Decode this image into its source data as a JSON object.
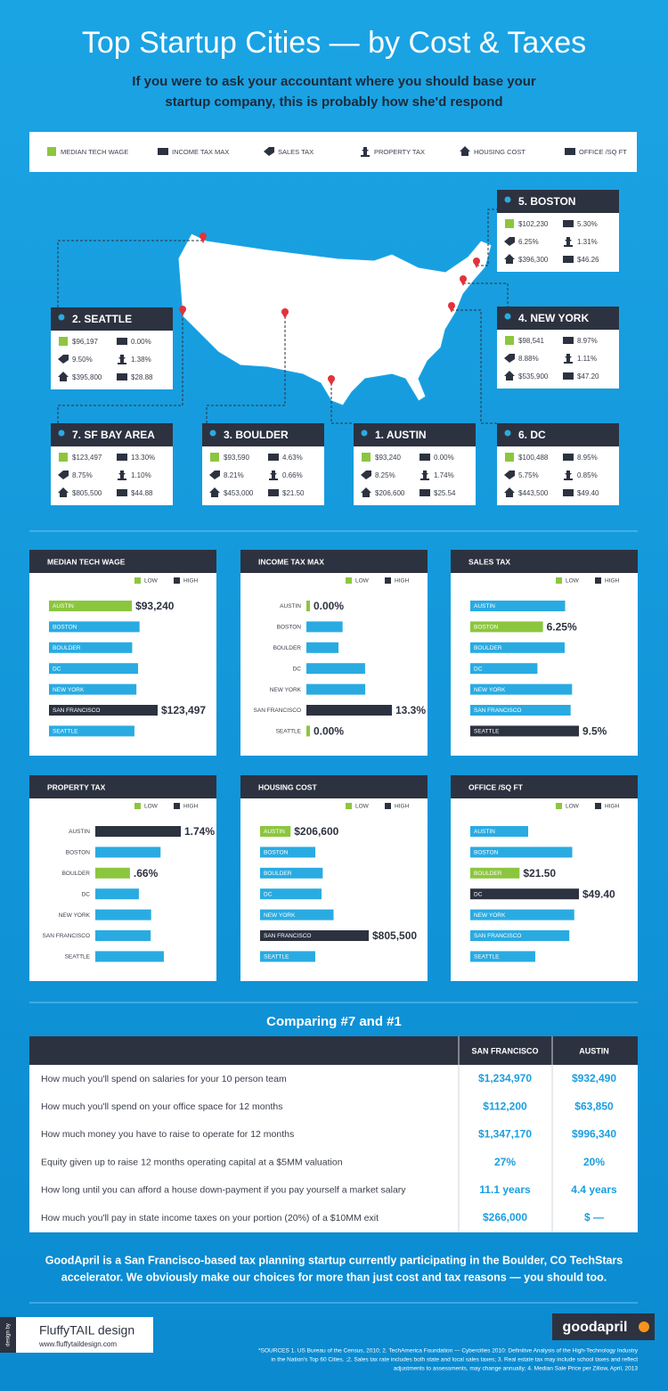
{
  "header": {
    "title": "Top Startup Cities — by Cost & Taxes",
    "subtitle_lines": [
      "If you were to ask your accountant where you should base your",
      "startup company, this is probably how she'd respond"
    ]
  },
  "legend": [
    "MEDIAN TECH WAGE",
    "INCOME TAX MAX",
    "SALES TAX",
    "PROPERTY TAX",
    "HOUSING COST",
    "OFFICE /SQ FT"
  ],
  "cities": [
    {
      "name": "5. BOSTON",
      "wage": "$102,230",
      "income_tax": "5.30%",
      "sales_tax": "6.25%",
      "property_tax": "1.31%",
      "housing": "$396,300",
      "office": "$46.26"
    },
    {
      "name": "2. SEATTLE",
      "wage": "$96,197",
      "income_tax": "0.00%",
      "sales_tax": "9.50%",
      "property_tax": "1.38%",
      "housing": "$395,800",
      "office": "$28.88"
    },
    {
      "name": "4. NEW YORK",
      "wage": "$98,541",
      "income_tax": "8.97%",
      "sales_tax": "8.88%",
      "property_tax": "1.11%",
      "housing": "$535,900",
      "office": "$47.20"
    },
    {
      "name": "7. SF BAY AREA",
      "wage": "$123,497",
      "income_tax": "13.30%",
      "sales_tax": "8.75%",
      "property_tax": "1.10%",
      "housing": "$805,500",
      "office": "$44.88"
    },
    {
      "name": "3. BOULDER",
      "wage": "$93,590",
      "income_tax": "4.63%",
      "sales_tax": "8.21%",
      "property_tax": "0.66%",
      "housing": "$453,000",
      "office": "$21.50"
    },
    {
      "name": "1. AUSTIN",
      "wage": "$93,240",
      "income_tax": "0.00%",
      "sales_tax": "8.25%",
      "property_tax": "1.74%",
      "housing": "$206,600",
      "office": "$25.54"
    },
    {
      "name": "6. DC",
      "wage": "$100,488",
      "income_tax": "8.95%",
      "sales_tax": "5.75%",
      "property_tax": "0.85%",
      "housing": "$443,500",
      "office": "$49.40"
    }
  ],
  "bar_legend": [
    {
      "name": "LOW",
      "color": "#8cc63f"
    },
    {
      "name": "HIGH",
      "color": "#2d3240"
    }
  ],
  "chart_data": [
    {
      "type": "bar",
      "title": "MEDIAN TECH WAGE",
      "category_labels": "inside",
      "categories": [
        "AUSTIN",
        "BOSTON",
        "BOULDER",
        "DC",
        "NEW YORK",
        "SAN FRANCISCO",
        "SEATTLE"
      ],
      "values": [
        93240,
        102230,
        93590,
        100488,
        98541,
        123497,
        96197
      ],
      "value_labels": [
        "$93,240",
        null,
        null,
        null,
        null,
        "$123,497",
        null
      ],
      "colors": [
        "#8cc63f",
        "#29abe2",
        "#29abe2",
        "#29abe2",
        "#29abe2",
        "#2d3240",
        "#29abe2"
      ]
    },
    {
      "type": "bar",
      "title": "INCOME TAX MAX",
      "category_labels": "left",
      "categories": [
        "AUSTIN",
        "BOSTON",
        "BOULDER",
        "DC",
        "NEW YORK",
        "SAN FRANCISCO",
        "SEATTLE"
      ],
      "values": [
        0,
        5.3,
        4.63,
        8.95,
        8.97,
        13.3,
        0
      ],
      "value_labels": [
        "0.00%",
        null,
        null,
        null,
        null,
        "13.3%",
        "0.00%"
      ],
      "colors": [
        "#8cc63f",
        "#29abe2",
        "#29abe2",
        "#29abe2",
        "#29abe2",
        "#2d3240",
        "#8cc63f"
      ]
    },
    {
      "type": "bar",
      "title": "SALES TAX",
      "category_labels": "inside",
      "categories": [
        "AUSTIN",
        "BOSTON",
        "BOULDER",
        "DC",
        "NEW YORK",
        "SAN FRANCISCO",
        "SEATTLE"
      ],
      "values": [
        8.25,
        6.25,
        8.21,
        5.75,
        8.88,
        8.75,
        9.5
      ],
      "value_labels": [
        null,
        "6.25%",
        null,
        null,
        null,
        null,
        "9.5%"
      ],
      "colors": [
        "#29abe2",
        "#8cc63f",
        "#29abe2",
        "#29abe2",
        "#29abe2",
        "#29abe2",
        "#2d3240"
      ]
    },
    {
      "type": "bar",
      "title": "PROPERTY TAX",
      "category_labels": "left",
      "categories": [
        "AUSTIN",
        "BOSTON",
        "BOULDER",
        "DC",
        "NEW YORK",
        "SAN FRANCISCO",
        "SEATTLE"
      ],
      "values": [
        1.74,
        1.31,
        0.66,
        0.85,
        1.11,
        1.1,
        1.38
      ],
      "value_labels": [
        "1.74%",
        null,
        ".66%",
        null,
        null,
        null,
        null
      ],
      "colors": [
        "#2d3240",
        "#29abe2",
        "#8cc63f",
        "#29abe2",
        "#29abe2",
        "#29abe2",
        "#29abe2"
      ]
    },
    {
      "type": "bar",
      "title": "HOUSING COST",
      "category_labels": "inside",
      "categories": [
        "AUSTIN",
        "BOSTON",
        "BOULDER",
        "DC",
        "NEW YORK",
        "SAN FRANCISCO",
        "SEATTLE"
      ],
      "values": [
        206600,
        396300,
        453000,
        443500,
        535900,
        805500,
        395800
      ],
      "value_labels": [
        "$206,600",
        null,
        null,
        null,
        null,
        "$805,500",
        null
      ],
      "colors": [
        "#8cc63f",
        "#29abe2",
        "#29abe2",
        "#29abe2",
        "#29abe2",
        "#2d3240",
        "#29abe2"
      ]
    },
    {
      "type": "bar",
      "title": "OFFICE /SQ FT",
      "category_labels": "inside",
      "categories": [
        "AUSTIN",
        "BOSTON",
        "BOULDER",
        "DC",
        "NEW YORK",
        "SAN FRANCISCO",
        "SEATTLE"
      ],
      "values": [
        25.54,
        46.26,
        21.5,
        49.4,
        47.2,
        44.88,
        28.88
      ],
      "value_labels": [
        null,
        null,
        "$21.50",
        "$49.40",
        null,
        null,
        null
      ],
      "colors": [
        "#29abe2",
        "#29abe2",
        "#8cc63f",
        "#2d3240",
        "#29abe2",
        "#29abe2",
        "#29abe2"
      ]
    }
  ],
  "comparison": {
    "title": "Comparing #7 and #1",
    "columns": [
      "SAN FRANCISCO",
      "AUSTIN"
    ],
    "rows": [
      [
        "How much you'll spend on salaries for your 10 person team",
        "$1,234,970",
        "$932,490"
      ],
      [
        "How much you'll spend on your office space for 12 months",
        "$112,200",
        "$63,850"
      ],
      [
        "How much money you have to raise to operate for 12 months",
        "$1,347,170",
        "$996,340"
      ],
      [
        "Equity given up to raise 12 months operating capital at a $5MM valuation",
        "27%",
        "20%"
      ],
      [
        "How long until you can afford a house down-payment if you pay yourself a market salary",
        "11.1 years",
        "4.4 years"
      ],
      [
        "How much you'll pay in state income taxes on your portion (20%) of a $10MM exit",
        "$266,000",
        "$ —"
      ]
    ]
  },
  "footer": {
    "text_lines": [
      "GoodApril is a San Francisco-based tax planning startup currently participating in the Boulder, CO TechStars",
      "accelerator. We obviously make our choices for more than just cost and tax reasons — you should too."
    ],
    "design_by": "design by",
    "designer": "FluffyTAIL design",
    "designer_url": "www.fluffytaildesign.com",
    "brand": "goodapril",
    "sources": [
      "*SOURCES 1. US Bureau of the Census, 2010; 2. TechAmerica Foundation — Cybercities 2010: Definitive Analysis of the High-Technology Industry",
      "in the Nation's Top 60 Cities. ;2. Sales tax rate includes both state and local sales taxes; 3. Real estate tax may include school taxes and reflect",
      "adjustments to assessments, may change annually; 4. Median Sale Price per Zillow, April, 2013"
    ]
  }
}
